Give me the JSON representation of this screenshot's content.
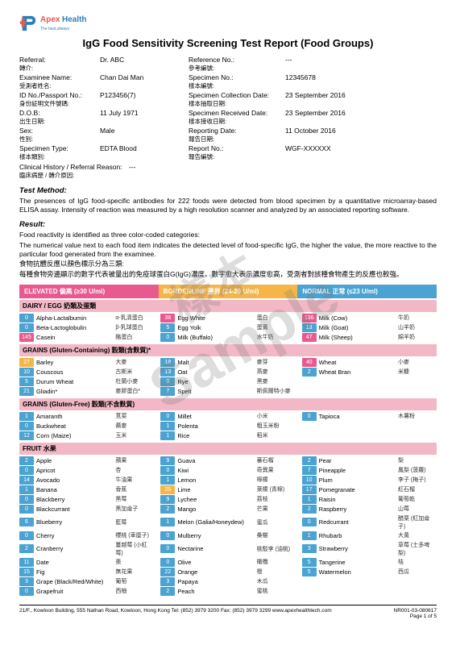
{
  "brand": {
    "p1": "Apex",
    "p2": "Health",
    "tag": "The best,always"
  },
  "title": "IgG Food Sensitivity Screening Test Report (Food Groups)",
  "info": [
    {
      "l": "Referral:",
      "s": "轉介:",
      "v": "Dr. ABC",
      "l2": "Reference No.:",
      "s2": "參考編號:",
      "v2": "---"
    },
    {
      "l": "Examinee Name:",
      "s": "受測者姓名:",
      "v": "Chan Dai Man",
      "l2": "Specimen No.:",
      "s2": "樣本編號:",
      "v2": "12345678"
    },
    {
      "l": "ID No./Passport No.:",
      "s": "身份証明文件號碼:",
      "v": "P123456(7)",
      "l2": "Specimen Collection Date:",
      "s2": "樣本抽取日期:",
      "v2": "23 September 2016"
    },
    {
      "l": "D.O.B:",
      "s": "出生日期:",
      "v": "11 July 1971",
      "l2": "Specimen Received Date:",
      "s2": "樣本接收日期:",
      "v2": "23 September 2016"
    },
    {
      "l": "Sex:",
      "s": "性別:",
      "v": "Male",
      "l2": "Reporting Date:",
      "s2": "報告日期:",
      "v2": "11 October 2016"
    },
    {
      "l": "Specimen Type:",
      "s": "樣本類別:",
      "v": "EDTA Blood",
      "l2": "Report No.:",
      "s2": "報告編號:",
      "v2": "WGF-XXXXXX"
    }
  ],
  "clin_l": "Clinical History / Referral Reason:",
  "clin_s": "臨床病歷 / 轉介原因:",
  "clin_v": "---",
  "method_h": "Test Method:",
  "method_t": "The presences of IgG food-specific antibodies for 222 foods were detected from blood specimen by a quantitative microarray-based ELISA assay. Intensity of reaction was measured by a high resolution scanner and analyzed by an associated reporting software.",
  "result_h": "Result:",
  "result_t1": "Food reactivity is identified as three color-coded categories:",
  "result_t2": "The numerical value next to each food item indicates the detected level of food-specific IgG, the higher the value, the more reactive to the particular food generated from the examinee.",
  "result_t3": "食物抗體反應以顏色標示分為三類:",
  "result_t4": "每種食物旁邊顯示的數字代表被量出的免疫球蛋白G(IgG)濃度。數字愈大表示濃度愈高，受測者對該種食物產生的反應也較強。",
  "cats": {
    "e": "ELEVATED 偏高 (≥30 U/ml)",
    "b": "BORDERLINE 邊界 (24-29 U/ml)",
    "n": "NORMAL 正常 (≤23 U/ml)"
  },
  "groups": [
    {
      "h": "DAIRY / EGG 奶類及蛋類",
      "rows": [
        [
          {
            "n": 0,
            "c": "n",
            "en": "Alpha-Lactalbumin",
            "cn": "α-乳清蛋白"
          },
          {
            "n": 38,
            "c": "e",
            "en": "Egg White",
            "cn": "蛋白"
          },
          {
            "n": 136,
            "c": "e",
            "en": "Milk (Cow)",
            "cn": "牛奶"
          }
        ],
        [
          {
            "n": 0,
            "c": "n",
            "en": "Beta-Lactoglobulin",
            "cn": "β-乳球蛋白"
          },
          {
            "n": 5,
            "c": "n",
            "en": "Egg Yolk",
            "cn": "蛋黃"
          },
          {
            "n": 13,
            "c": "n",
            "en": "Milk (Goat)",
            "cn": "山羊奶"
          }
        ],
        [
          {
            "n": 145,
            "c": "e",
            "en": "Casein",
            "cn": "酪蛋白"
          },
          {
            "n": 0,
            "c": "n",
            "en": "Milk (Buffalo)",
            "cn": "水牛奶"
          },
          {
            "n": 47,
            "c": "e",
            "en": "Milk (Sheep)",
            "cn": "綿羊奶"
          }
        ]
      ]
    },
    {
      "h": "GRAINS (Gluten-Containing) 穀類(含麩質)*",
      "rows": [
        [
          {
            "n": 27,
            "c": "b",
            "en": "Barley",
            "cn": "大麥"
          },
          {
            "n": 18,
            "c": "n",
            "en": "Malt",
            "cn": "麥芽"
          },
          {
            "n": 40,
            "c": "e",
            "en": "Wheat",
            "cn": "小麥"
          }
        ],
        [
          {
            "n": 10,
            "c": "n",
            "en": "Couscous",
            "cn": "古斯米"
          },
          {
            "n": 13,
            "c": "n",
            "en": "Oat",
            "cn": "燕麥"
          },
          {
            "n": 2,
            "c": "n",
            "en": "Wheat Bran",
            "cn": "米糠"
          }
        ],
        [
          {
            "n": 5,
            "c": "n",
            "en": "Durum Wheat",
            "cn": "杜蘭小麥"
          },
          {
            "n": 0,
            "c": "n",
            "en": "Rye",
            "cn": "黑麥"
          },
          null
        ],
        [
          {
            "n": 21,
            "c": "n",
            "en": "Gliadin*",
            "cn": "麥膠蛋白*"
          },
          {
            "n": 7,
            "c": "n",
            "en": "Spelt",
            "cn": "斯佩爾特小麥"
          },
          null
        ]
      ]
    },
    {
      "h": "GRAINS (Gluten-Free) 穀類(不含麩質)",
      "rows": [
        [
          {
            "n": 1,
            "c": "n",
            "en": "Amaranth",
            "cn": "莧菜"
          },
          {
            "n": 0,
            "c": "n",
            "en": "Millet",
            "cn": "小米"
          },
          {
            "n": 0,
            "c": "n",
            "en": "Tapioca",
            "cn": "木薯粉"
          }
        ],
        [
          {
            "n": 0,
            "c": "n",
            "en": "Buckwheat",
            "cn": "蕎麥"
          },
          {
            "n": 1,
            "c": "n",
            "en": "Polenta",
            "cn": "粗玉米粉"
          },
          null
        ],
        [
          {
            "n": 12,
            "c": "n",
            "en": "Corn (Maize)",
            "cn": "玉米"
          },
          {
            "n": 1,
            "c": "n",
            "en": "Rice",
            "cn": "稻米"
          },
          null
        ]
      ]
    },
    {
      "h": "FRUIT 水果",
      "rows": [
        [
          {
            "n": 2,
            "c": "n",
            "en": "Apple",
            "cn": "蘋果"
          },
          {
            "n": 9,
            "c": "n",
            "en": "Guava",
            "cn": "蕃石榴"
          },
          {
            "n": 2,
            "c": "n",
            "en": "Pear",
            "cn": "梨"
          }
        ],
        [
          {
            "n": 0,
            "c": "n",
            "en": "Apricot",
            "cn": "杏"
          },
          {
            "n": 0,
            "c": "n",
            "en": "Kiwi",
            "cn": "奇異果"
          },
          {
            "n": 7,
            "c": "n",
            "en": "Pineapple",
            "cn": "鳳梨 (菠蘿)"
          }
        ],
        [
          {
            "n": 14,
            "c": "n",
            "en": "Avocado",
            "cn": "牛油果"
          },
          {
            "n": 1,
            "c": "n",
            "en": "Lemon",
            "cn": "檸檬"
          },
          {
            "n": 10,
            "c": "n",
            "en": "Plum",
            "cn": "李子 (梅子)"
          }
        ],
        [
          {
            "n": 1,
            "c": "n",
            "en": "Banana",
            "cn": "香蕉"
          },
          {
            "n": 25,
            "c": "b",
            "en": "Lime",
            "cn": "萊檬 (青檸)"
          },
          {
            "n": 17,
            "c": "n",
            "en": "Pomegranate",
            "cn": "紅石榴"
          }
        ],
        [
          {
            "n": 0,
            "c": "n",
            "en": "Blackberry",
            "cn": "黑莓"
          },
          {
            "n": 9,
            "c": "n",
            "en": "Lychee",
            "cn": "荔枝"
          },
          {
            "n": 1,
            "c": "n",
            "en": "Raisin",
            "cn": "葡萄乾"
          }
        ],
        [
          {
            "n": 0,
            "c": "n",
            "en": "Blackcurrant",
            "cn": "黑加侖子"
          },
          {
            "n": 2,
            "c": "n",
            "en": "Mango",
            "cn": "芒果"
          },
          {
            "n": 2,
            "c": "n",
            "en": "Raspberry",
            "cn": "山莓"
          }
        ],
        [
          {
            "n": 6,
            "c": "n",
            "en": "Blueberry",
            "cn": "藍莓"
          },
          {
            "n": 1,
            "c": "n",
            "en": "Melon (Galia/Honeydew)",
            "cn": "蜜瓜"
          },
          {
            "n": 0,
            "c": "n",
            "en": "Redcurrant",
            "cn": "醋栗 (紅加侖子)"
          }
        ],
        [
          {
            "n": 0,
            "c": "n",
            "en": "Cherry",
            "cn": "櫻桃 (車厘子)"
          },
          {
            "n": 0,
            "c": "n",
            "en": "Mulberry",
            "cn": "桑椹"
          },
          {
            "n": 1,
            "c": "n",
            "en": "Rhubarb",
            "cn": "大黃"
          }
        ],
        [
          {
            "n": 2,
            "c": "n",
            "en": "Cranberry",
            "cn": "蔓越莓 (小紅莓)"
          },
          {
            "n": 0,
            "c": "n",
            "en": "Nectarine",
            "cn": "桃駁李 (油桃)"
          },
          {
            "n": 3,
            "c": "n",
            "en": "Strawberry",
            "cn": "草莓 (士多啤梨)"
          }
        ],
        [
          {
            "n": 11,
            "c": "n",
            "en": "Date",
            "cn": "棗"
          },
          {
            "n": 0,
            "c": "n",
            "en": "Olive",
            "cn": "橄欖"
          },
          {
            "n": 5,
            "c": "n",
            "en": "Tangerine",
            "cn": "桔"
          }
        ],
        [
          {
            "n": 15,
            "c": "n",
            "en": "Fig",
            "cn": "無花果"
          },
          {
            "n": 22,
            "c": "n",
            "en": "Orange",
            "cn": "橙"
          },
          {
            "n": 5,
            "c": "n",
            "en": "Watermelon",
            "cn": "西瓜"
          }
        ],
        [
          {
            "n": 3,
            "c": "n",
            "en": "Grape (Black/Red/White)",
            "cn": "葡萄"
          },
          {
            "n": 3,
            "c": "n",
            "en": "Papaya",
            "cn": "木瓜"
          },
          null
        ],
        [
          {
            "n": 0,
            "c": "n",
            "en": "Grapefruit",
            "cn": "西柚"
          },
          {
            "n": 2,
            "c": "n",
            "en": "Peach",
            "cn": "蜜桃"
          },
          null
        ]
      ]
    }
  ],
  "watermark": {
    "en": "Sample",
    "cn": "樣本"
  },
  "footer": {
    "addr": "21/F., Kowloon Building, 555 Nathan Road, Kowloon, Hong Kong   Tel: (852) 3979 3200   Fax: (852) 3979 3299   www.apexhealthtech.com",
    "ref": "NR001-03-080617",
    "pg": "Page 1 of 5"
  }
}
